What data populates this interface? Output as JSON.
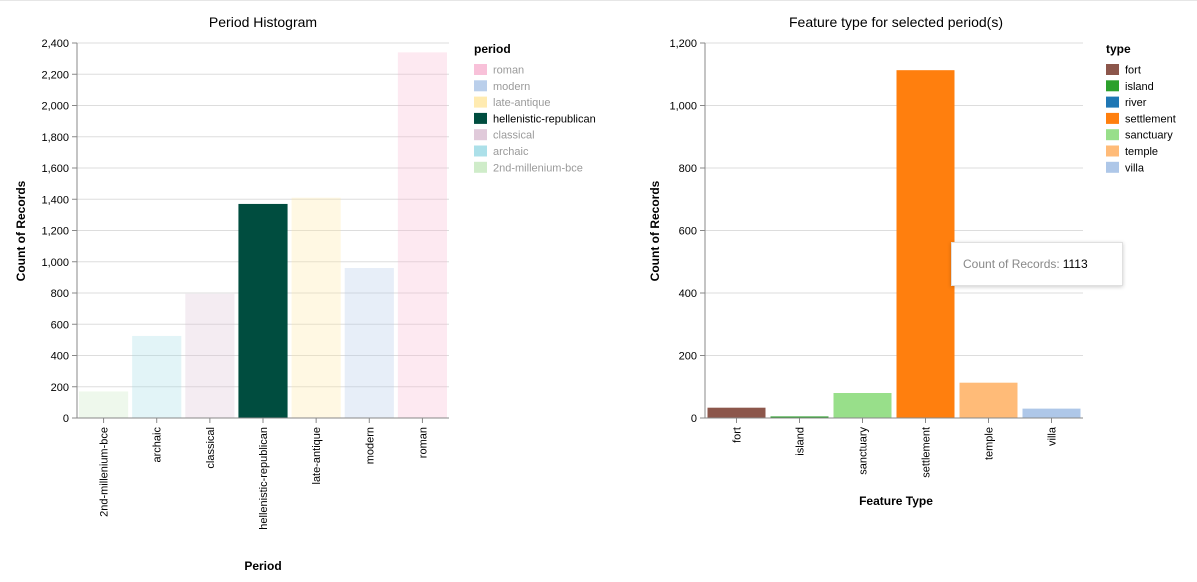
{
  "chart_data": [
    {
      "type": "bar",
      "title": "Period Histogram",
      "xlabel": "Period",
      "ylabel": "Count of Records",
      "ylim": [
        0,
        2400
      ],
      "yticks": [
        "0",
        "200",
        "400",
        "600",
        "800",
        "1,000",
        "1,200",
        "1,400",
        "1,600",
        "1,800",
        "2,000",
        "2,200",
        "2,400"
      ],
      "categories": [
        "2nd-millenium-bce",
        "archaic",
        "classical",
        "hellenistic-republican",
        "late-antique",
        "modern",
        "roman"
      ],
      "values": [
        170,
        525,
        795,
        1370,
        1410,
        960,
        2340
      ],
      "colors": [
        "#c7e9c0",
        "#9edae5",
        "#dbc1d3",
        "#004d3f",
        "#ffe8a3",
        "#aec7e8",
        "#f7b6d2"
      ],
      "selected": "hellenistic-republican",
      "legend": {
        "title": "period",
        "position": "right",
        "items": [
          {
            "label": "roman",
            "color": "#f7b6d2"
          },
          {
            "label": "modern",
            "color": "#aec7e8"
          },
          {
            "label": "late-antique",
            "color": "#ffe8a3"
          },
          {
            "label": "hellenistic-republican",
            "color": "#004d3f"
          },
          {
            "label": "classical",
            "color": "#dbc1d3"
          },
          {
            "label": "archaic",
            "color": "#9edae5"
          },
          {
            "label": "2nd-millenium-bce",
            "color": "#c7e9c0"
          }
        ]
      },
      "grid": true
    },
    {
      "type": "bar",
      "title": "Feature type for selected period(s)",
      "xlabel": "Feature Type",
      "ylabel": "Count of Records",
      "ylim": [
        0,
        1200
      ],
      "yticks": [
        "0",
        "200",
        "400",
        "600",
        "800",
        "1,000",
        "1,200"
      ],
      "categories": [
        "fort",
        "island",
        "sanctuary",
        "settlement",
        "temple",
        "villa"
      ],
      "values": [
        33,
        5,
        80,
        1113,
        113,
        30
      ],
      "colors": [
        "#8c564b",
        "#2ca02c",
        "#98df8a",
        "#ff7f0e",
        "#ffbb78",
        "#aec7e8"
      ],
      "legend": {
        "title": "type",
        "position": "right",
        "items": [
          {
            "label": "fort",
            "color": "#8c564b"
          },
          {
            "label": "island",
            "color": "#2ca02c"
          },
          {
            "label": "river",
            "color": "#1f77b4"
          },
          {
            "label": "settlement",
            "color": "#ff7f0e"
          },
          {
            "label": "sanctuary",
            "color": "#98df8a"
          },
          {
            "label": "temple",
            "color": "#ffbb78"
          },
          {
            "label": "villa",
            "color": "#aec7e8"
          }
        ]
      },
      "grid": true
    }
  ],
  "tooltip": {
    "key": "Count of Records:",
    "value": "1113"
  }
}
